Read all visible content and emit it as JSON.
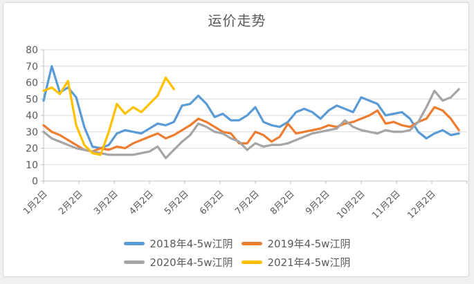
{
  "chart_data": {
    "type": "line",
    "title": "运价走势",
    "legend_position": "bottom",
    "grid": true,
    "y_axis": {
      "min": 0,
      "max": 80,
      "step": 10,
      "tick_labels": [
        "0",
        "10",
        "20",
        "30",
        "40",
        "50",
        "60",
        "70",
        "80"
      ]
    },
    "x_axis": {
      "tick_labels": [
        "1月2日",
        "2月2日",
        "3月2日",
        "4月2日",
        "5月2日",
        "6月2日",
        "7月2日",
        "8月2日",
        "9月2日",
        "10月2日",
        "11月2日",
        "12月2日"
      ],
      "points_per_series": 52,
      "note_unit": "weekly points"
    },
    "series": [
      {
        "name": "2018年4-5w江阴",
        "color": "#5B9BD5",
        "values": [
          49,
          70,
          54,
          57,
          51,
          33,
          21,
          20,
          22,
          29,
          31,
          30,
          29,
          32,
          35,
          34,
          36,
          46,
          47,
          52,
          47,
          39,
          41,
          37,
          37,
          40,
          45,
          36,
          34,
          33,
          36,
          42,
          44,
          42,
          38,
          43,
          46,
          44,
          42,
          51,
          49,
          47,
          40,
          41,
          42,
          38,
          30,
          26,
          29,
          31,
          28,
          29
        ]
      },
      {
        "name": "2019年4-5w江阴",
        "color": "#ED7D31",
        "values": [
          34,
          30,
          28,
          25,
          22,
          19,
          18,
          20,
          19,
          21,
          20,
          23,
          25,
          27,
          29,
          26,
          28,
          31,
          34,
          38,
          36,
          33,
          30,
          29,
          23,
          23,
          30,
          28,
          24,
          27,
          35,
          29,
          30,
          31,
          32,
          34,
          33,
          35,
          36,
          38,
          40,
          43,
          35,
          36,
          34,
          33,
          36,
          38,
          45,
          43,
          38,
          31
        ]
      },
      {
        "name": "2020年4-5w江阴",
        "color": "#A5A5A5",
        "values": [
          30,
          26,
          24,
          22,
          20,
          19,
          18,
          17,
          16,
          16,
          16,
          16,
          17,
          18,
          21,
          14,
          19,
          24,
          28,
          35,
          33,
          30,
          29,
          26,
          24,
          19,
          23,
          21,
          22,
          22,
          23,
          25,
          27,
          29,
          30,
          31,
          32,
          37,
          33,
          31,
          30,
          29,
          31,
          30,
          30,
          31,
          36,
          45,
          55,
          49,
          51,
          56
        ]
      },
      {
        "name": "2021年4-5w江阴",
        "color": "#FFC000",
        "values": [
          55,
          57,
          53,
          61,
          34,
          22,
          17,
          16,
          30,
          47,
          41,
          45,
          42,
          47,
          52,
          63,
          56
        ]
      }
    ],
    "style": {
      "grid_color": "#D9D9D9",
      "axis_color": "#BFBFBF",
      "text_color": "#595959",
      "background": "#FFFFFF"
    }
  }
}
